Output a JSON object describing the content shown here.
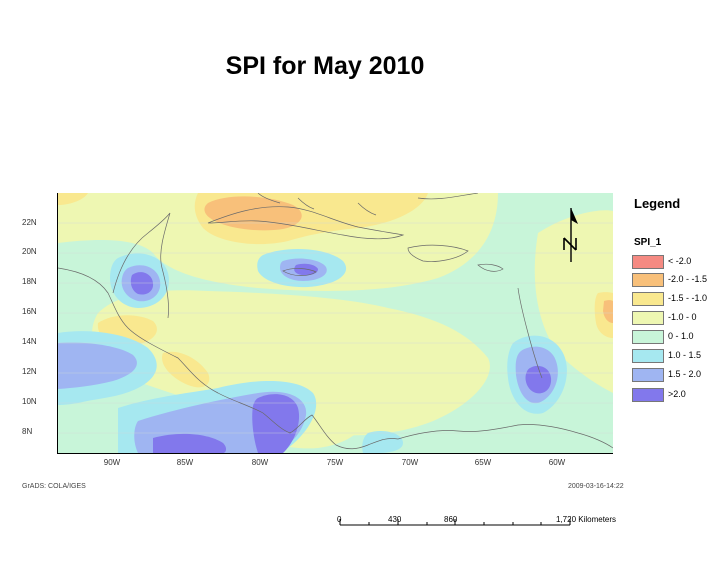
{
  "title": "SPI for  May 2010",
  "map": {
    "lat_labels": [
      "22N",
      "20N",
      "18N",
      "16N",
      "14N",
      "12N",
      "10N",
      "8N"
    ],
    "lon_labels": [
      "90W",
      "85W",
      "80W",
      "75W",
      "70W",
      "65W",
      "60W"
    ],
    "north_label": "N",
    "footer_left": "GrADS: COLA/IGES",
    "footer_right": "2009-03-16-14:22",
    "colors": {
      "background_field": "#c8f5d9",
      "land_outline": "#6a6a6a"
    }
  },
  "legend": {
    "title": "Legend",
    "field": "SPI_1",
    "items": [
      {
        "label": "< -2.0",
        "color": "#f58a82"
      },
      {
        "label": "-2.0 - -1.5",
        "color": "#f8c07a"
      },
      {
        "label": "-1.5 - -1.0",
        "color": "#f9e88f"
      },
      {
        "label": "-1.0 - 0",
        "color": "#eef7b2"
      },
      {
        "label": "0 - 1.0",
        "color": "#c8f5d9"
      },
      {
        "label": "1.0 - 1.5",
        "color": "#a6e8f0"
      },
      {
        "label": "1.5 - 2.0",
        "color": "#9fb5f2"
      },
      {
        "label": ">2.0",
        "color": "#8278ec"
      }
    ]
  },
  "scale": {
    "ticks": [
      "0",
      "430",
      "860",
      "1,720 Kilometers"
    ]
  }
}
